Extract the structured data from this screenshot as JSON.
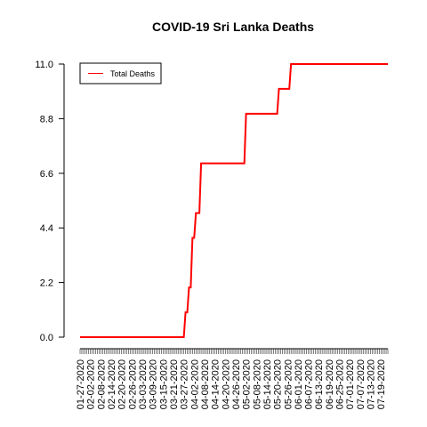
{
  "chart_data": {
    "type": "line",
    "title": "COVID-19 Sri Lanka Deaths",
    "xlabel": "",
    "ylabel": "",
    "start_date": "2020-01-27",
    "end_date": "2020-07-23",
    "x_tick_labels": [
      "01-27-2020",
      "02-02-2020",
      "02-08-2020",
      "02-14-2020",
      "02-20-2020",
      "02-26-2020",
      "03-03-2020",
      "03-09-2020",
      "03-15-2020",
      "03-21-2020",
      "03-27-2020",
      "04-02-2020",
      "04-08-2020",
      "04-14-2020",
      "04-20-2020",
      "04-26-2020",
      "05-02-2020",
      "05-08-2020",
      "05-14-2020",
      "05-20-2020",
      "05-26-2020",
      "06-01-2020",
      "06-07-2020",
      "06-13-2020",
      "06-19-2020",
      "06-25-2020",
      "07-01-2020",
      "07-07-2020",
      "07-13-2020",
      "07-19-2020"
    ],
    "y_ticks": [
      "0.0",
      "2.2",
      "4.4",
      "6.6",
      "8.8",
      "11.0"
    ],
    "ylim": [
      0,
      11
    ],
    "grid": false,
    "legend_position": "top-left",
    "series": [
      {
        "name": "Total Deaths",
        "color": "#ff0000",
        "points": [
          {
            "date": "2020-01-27",
            "value": 0
          },
          {
            "date": "2020-03-28",
            "value": 1
          },
          {
            "date": "2020-03-30",
            "value": 2
          },
          {
            "date": "2020-04-01",
            "value": 4
          },
          {
            "date": "2020-04-03",
            "value": 5
          },
          {
            "date": "2020-04-06",
            "value": 7
          },
          {
            "date": "2020-05-02",
            "value": 9
          },
          {
            "date": "2020-05-21",
            "value": 10
          },
          {
            "date": "2020-05-28",
            "value": 11
          },
          {
            "date": "2020-07-23",
            "value": 11
          }
        ]
      }
    ]
  }
}
